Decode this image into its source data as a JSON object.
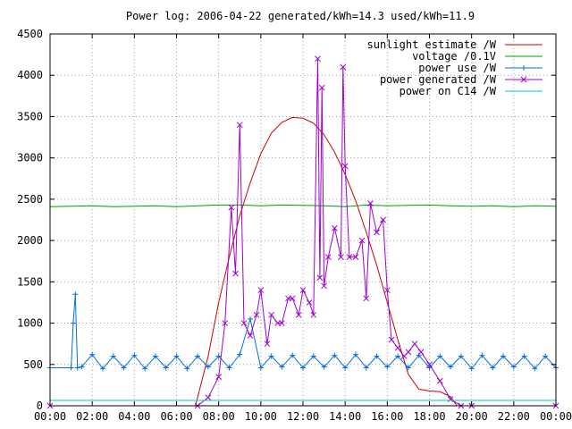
{
  "chart_data": {
    "type": "line",
    "title": "Power log: 2006-04-22 generated/kWh=14.3 used/kWh=11.9",
    "xlabel": "",
    "ylabel": "",
    "xlim": [
      0,
      24
    ],
    "ylim": [
      0,
      4500
    ],
    "x_ticks": [
      "00:00",
      "02:00",
      "04:00",
      "06:00",
      "08:00",
      "10:00",
      "12:00",
      "14:00",
      "16:00",
      "18:00",
      "20:00",
      "22:00",
      "00:00"
    ],
    "y_ticks": [
      "0",
      "500",
      "1000",
      "1500",
      "2000",
      "2500",
      "3000",
      "3500",
      "4000",
      "4500"
    ],
    "grid": true,
    "legend_position": "top-right",
    "series": [
      {
        "name": "sunlight estimate /W",
        "color": "#d00000",
        "marker": "none",
        "x": [
          0,
          6.9,
          7.5,
          8.0,
          8.5,
          9.0,
          9.5,
          10.0,
          10.5,
          11.0,
          11.5,
          12.0,
          12.5,
          13.0,
          13.5,
          14.0,
          14.5,
          15.0,
          15.5,
          16.0,
          16.5,
          17.0,
          17.5,
          18.0,
          18.5,
          19.0,
          19.3,
          24
        ],
        "values": [
          0,
          0,
          600,
          1250,
          1800,
          2300,
          2700,
          3050,
          3300,
          3430,
          3490,
          3480,
          3420,
          3280,
          3070,
          2800,
          2480,
          2100,
          1700,
          1250,
          800,
          380,
          200,
          180,
          170,
          110,
          0,
          0
        ]
      },
      {
        "name": "voltage /0.1V",
        "color": "#00a000",
        "marker": "none",
        "x": [
          0,
          1,
          2,
          3,
          4,
          5,
          6,
          7,
          8,
          9,
          10,
          11,
          12,
          13,
          14,
          15,
          16,
          17,
          18,
          19,
          20,
          21,
          22,
          23,
          24
        ],
        "values": [
          2410,
          2415,
          2420,
          2410,
          2415,
          2420,
          2410,
          2420,
          2430,
          2430,
          2420,
          2430,
          2425,
          2420,
          2410,
          2430,
          2420,
          2425,
          2430,
          2420,
          2415,
          2420,
          2410,
          2420,
          2415
        ]
      },
      {
        "name": "power use /W",
        "color": "#0070e0",
        "marker": "plus",
        "x": [
          0,
          1.0,
          1.1,
          1.2,
          1.3,
          1.5,
          2.0,
          2.5,
          3.0,
          3.5,
          4.0,
          4.5,
          5.0,
          5.5,
          6.0,
          6.5,
          7.0,
          7.5,
          8.0,
          8.5,
          9.0,
          9.5,
          10.0,
          10.5,
          11.0,
          11.5,
          12.0,
          12.5,
          13.0,
          13.5,
          14.0,
          14.5,
          15.0,
          15.5,
          16.0,
          16.5,
          17.0,
          17.5,
          18.0,
          18.5,
          19.0,
          19.5,
          20.0,
          20.5,
          21.0,
          21.5,
          22.0,
          22.5,
          23.0,
          23.5,
          24
        ],
        "values": [
          460,
          460,
          1000,
          1350,
          460,
          470,
          620,
          450,
          600,
          460,
          610,
          450,
          600,
          460,
          600,
          450,
          600,
          470,
          600,
          460,
          620,
          1050,
          460,
          600,
          470,
          610,
          460,
          600,
          470,
          610,
          460,
          620,
          460,
          600,
          470,
          600,
          460,
          610,
          460,
          600,
          470,
          600,
          450,
          610,
          460,
          600,
          470,
          600,
          450,
          600,
          460
        ]
      },
      {
        "name": "power generated /W",
        "color": "#a000d0",
        "marker": "x",
        "x": [
          0,
          7.0,
          7.5,
          8.0,
          8.3,
          8.6,
          8.8,
          9.0,
          9.2,
          9.5,
          9.8,
          10.0,
          10.3,
          10.5,
          10.8,
          11.0,
          11.3,
          11.5,
          11.8,
          12.0,
          12.3,
          12.5,
          12.7,
          12.8,
          12.9,
          13.0,
          13.2,
          13.5,
          13.8,
          13.9,
          14.0,
          14.2,
          14.5,
          14.8,
          15.0,
          15.2,
          15.5,
          15.8,
          16.0,
          16.2,
          16.5,
          16.8,
          17.0,
          17.3,
          17.6,
          18.0,
          18.5,
          19.0,
          19.5,
          20.0,
          24
        ],
        "values": [
          0,
          0,
          100,
          350,
          1000,
          2400,
          1600,
          3400,
          1000,
          850,
          1100,
          1400,
          750,
          1100,
          1000,
          1000,
          1300,
          1300,
          1100,
          1400,
          1250,
          1100,
          4200,
          1550,
          3850,
          1450,
          1800,
          2150,
          1800,
          4100,
          2900,
          1800,
          1800,
          2000,
          1300,
          2450,
          2100,
          2250,
          1400,
          800,
          700,
          600,
          650,
          750,
          650,
          500,
          300,
          80,
          0,
          0,
          0
        ]
      },
      {
        "name": "power on C14 /W",
        "color": "#00c8c8",
        "marker": "none",
        "x": [
          0,
          24
        ],
        "values": [
          65,
          65
        ]
      }
    ]
  }
}
